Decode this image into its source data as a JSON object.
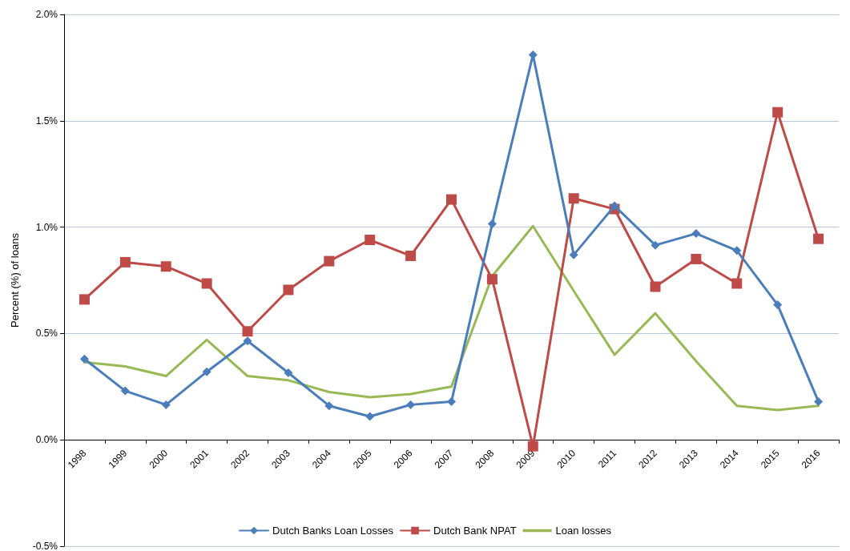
{
  "chart_data": {
    "type": "line",
    "ylabel": "Percent (%) of loans",
    "categories": [
      "1998",
      "1999",
      "2000",
      "2001",
      "2002",
      "2003",
      "2004",
      "2005",
      "2006",
      "2007",
      "2008",
      "2009",
      "2010",
      "2011",
      "2012",
      "2013",
      "2014",
      "2015",
      "2016"
    ],
    "series": [
      {
        "name": "Dutch Banks Loan Losses",
        "color": "#4a7ebb",
        "marker": "diamond",
        "values": [
          0.38,
          0.23,
          0.165,
          0.32,
          0.465,
          0.315,
          0.16,
          0.11,
          0.165,
          0.18,
          1.015,
          1.81,
          0.87,
          1.1,
          0.915,
          0.97,
          0.89,
          0.635,
          0.18
        ]
      },
      {
        "name": "Dutch Bank NPAT",
        "color": "#be4b48",
        "marker": "square",
        "values": [
          0.66,
          0.835,
          0.815,
          0.735,
          0.51,
          0.705,
          0.84,
          0.94,
          0.865,
          1.13,
          0.755,
          -0.03,
          1.135,
          1.085,
          0.72,
          0.85,
          0.735,
          1.54,
          0.945
        ]
      },
      {
        "name": "Loan losses",
        "color": "#98b954",
        "marker": "none",
        "values": [
          0.365,
          0.345,
          0.3,
          0.47,
          0.3,
          0.28,
          0.225,
          0.2,
          0.215,
          0.25,
          0.77,
          1.005,
          0.7,
          0.4,
          0.595,
          0.37,
          0.16,
          0.14,
          0.16
        ]
      }
    ],
    "ylim": [
      -0.5,
      2.0
    ],
    "yticks": [
      {
        "value": -0.5,
        "label": "-0.5%"
      },
      {
        "value": 0,
        "label": "0.0%"
      },
      {
        "value": 0.5,
        "label": "0.5%"
      },
      {
        "value": 1.0,
        "label": "1.0%"
      },
      {
        "value": 1.5,
        "label": "1.5%"
      },
      {
        "value": 2.0,
        "label": "2.0%"
      }
    ],
    "grid": "y",
    "legend": "bottom",
    "line_style": "solid"
  }
}
